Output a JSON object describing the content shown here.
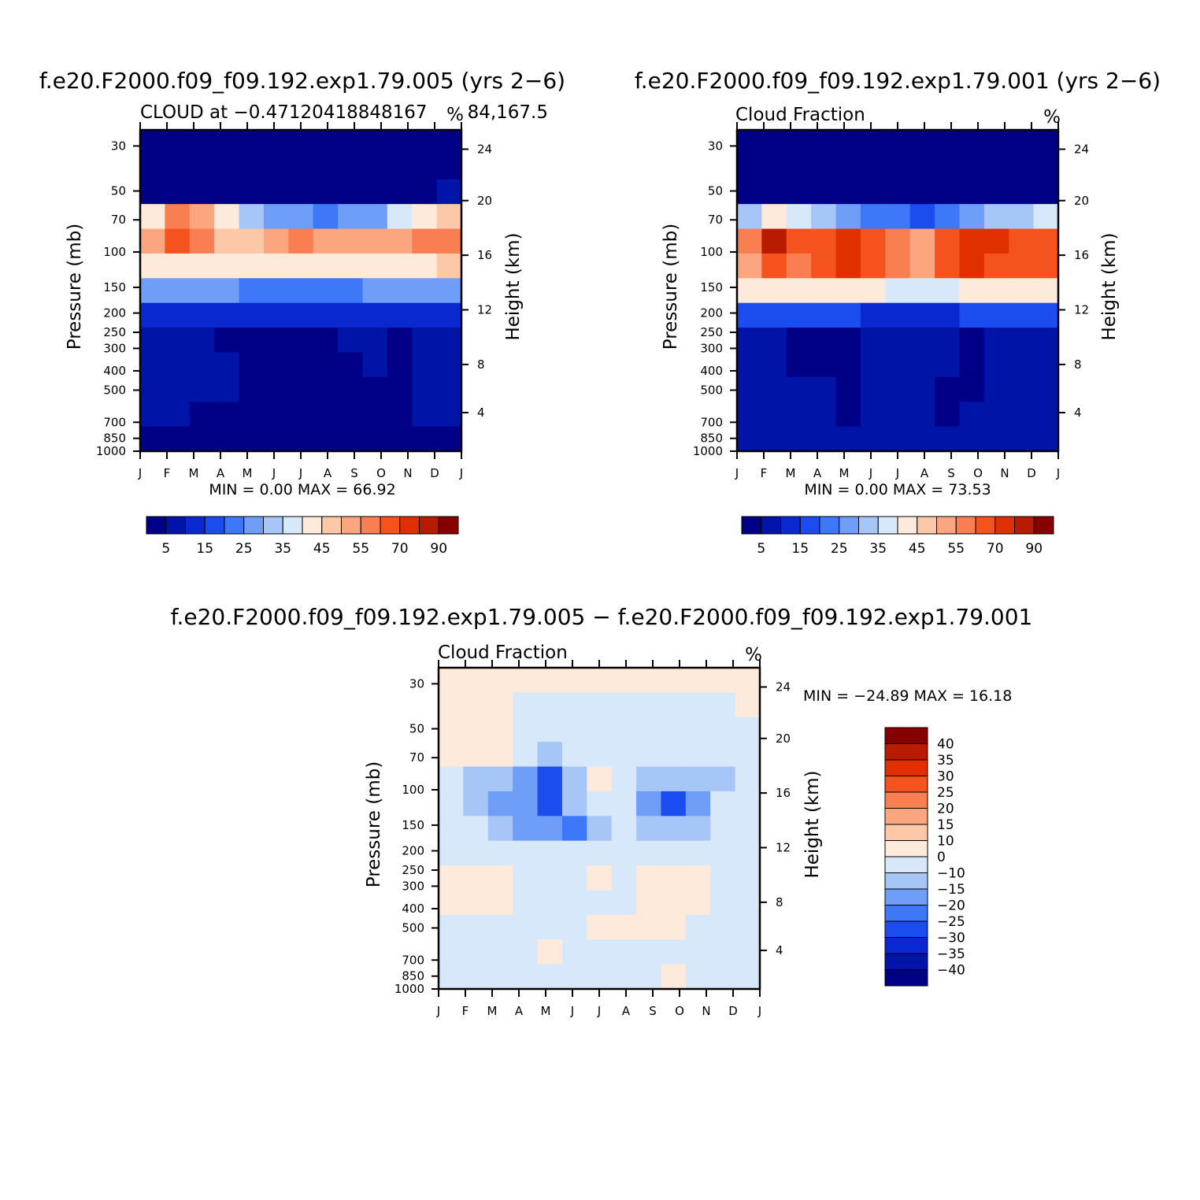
{
  "chart_data": [
    {
      "type": "heatmap",
      "title": "f.e20.F2000.f09_f09.192.exp1.79.005 (yrs 2−6)",
      "subtitle_left": "CLOUD at −0.47120418848167",
      "subtitle_right": "84,167.5",
      "subtitle_units": "%",
      "ylabel": "Pressure (mb)",
      "y2label": "Height (km)",
      "months": [
        "J",
        "F",
        "M",
        "A",
        "M",
        "J",
        "J",
        "A",
        "S",
        "O",
        "N",
        "D",
        "J"
      ],
      "pressure_ticks": [
        "30",
        "50",
        "70",
        "100",
        "150",
        "200",
        "250",
        "300",
        "400",
        "500",
        "700",
        "850",
        "1000"
      ],
      "height_ticks": [
        "24",
        "20",
        "16",
        "12",
        "8",
        "4"
      ],
      "minmax": "MIN =     0.00  MAX =    66.92",
      "colorbar_labels": [
        "5",
        "15",
        "25",
        "35",
        "45",
        "55",
        "70",
        "90"
      ],
      "colorbar_colors": [
        "#000087",
        "#0014a8",
        "#0a28d0",
        "#1a4cf0",
        "#3c78f8",
        "#6e9ef8",
        "#a6c6f8",
        "#d6e8fa",
        "#feeada",
        "#fdc8a8",
        "#fba67e",
        "#f97e52",
        "#f4531e",
        "#e03000",
        "#b81c00",
        "#860000"
      ],
      "grid": [
        [
          0,
          0,
          0,
          0,
          0,
          0,
          0,
          0,
          0,
          0,
          0,
          0,
          0
        ],
        [
          0,
          0,
          0,
          0,
          0,
          0,
          0,
          0,
          0,
          0,
          0,
          0,
          0
        ],
        [
          3,
          4,
          4,
          2,
          1,
          1,
          1,
          0,
          1,
          1,
          2,
          3,
          5
        ],
        [
          44,
          57,
          50,
          40,
          32,
          26,
          26,
          20,
          25,
          28,
          35,
          44,
          48
        ],
        [
          50,
          62,
          58,
          48,
          46,
          50,
          55,
          50,
          50,
          50,
          52,
          55,
          55
        ],
        [
          40,
          42,
          43,
          42,
          41,
          41,
          42,
          41,
          40,
          41,
          42,
          44,
          45
        ],
        [
          25,
          26,
          26,
          25,
          24,
          23,
          22,
          22,
          23,
          25,
          26,
          26,
          26
        ],
        [
          12,
          12,
          12,
          11,
          10,
          10,
          10,
          10,
          11,
          12,
          12,
          12,
          12
        ],
        [
          7,
          6,
          5,
          4,
          2,
          3,
          4,
          4,
          5,
          6,
          4,
          5,
          7
        ],
        [
          8,
          7,
          9,
          5,
          3,
          4,
          4,
          4,
          4,
          5,
          3,
          5,
          8
        ],
        [
          9,
          6,
          5,
          5,
          4,
          4,
          4,
          4,
          4,
          4,
          2,
          5,
          8
        ],
        [
          6,
          5,
          4,
          4,
          3,
          4,
          4,
          4,
          4,
          4,
          3,
          5,
          7
        ],
        [
          4,
          4,
          4,
          4,
          4,
          4,
          4,
          4,
          4,
          4,
          4,
          4,
          4
        ]
      ]
    },
    {
      "type": "heatmap",
      "title": "f.e20.F2000.f09_f09.192.exp1.79.001 (yrs 2−6)",
      "subtitle_left": "Cloud Fraction",
      "subtitle_units": "%",
      "ylabel": "Pressure (mb)",
      "y2label": "Height (km)",
      "months": [
        "J",
        "F",
        "M",
        "A",
        "M",
        "J",
        "J",
        "A",
        "S",
        "O",
        "N",
        "D",
        "J"
      ],
      "pressure_ticks": [
        "30",
        "50",
        "70",
        "100",
        "150",
        "200",
        "250",
        "300",
        "400",
        "500",
        "700",
        "850",
        "1000"
      ],
      "height_ticks": [
        "24",
        "20",
        "16",
        "12",
        "8",
        "4"
      ],
      "minmax": "MIN =     0.00  MAX =    73.53",
      "colorbar_labels": [
        "5",
        "15",
        "25",
        "35",
        "45",
        "55",
        "70",
        "90"
      ],
      "colorbar_colors": [
        "#000087",
        "#0014a8",
        "#0a28d0",
        "#1a4cf0",
        "#3c78f8",
        "#6e9ef8",
        "#a6c6f8",
        "#d6e8fa",
        "#feeada",
        "#fdc8a8",
        "#fba67e",
        "#f97e52",
        "#f4531e",
        "#e03000",
        "#b81c00",
        "#860000"
      ],
      "grid": [
        [
          0,
          0,
          0,
          0,
          0,
          0,
          0,
          0,
          0,
          0,
          0,
          0,
          0
        ],
        [
          0,
          0,
          0,
          0,
          0,
          0,
          0,
          0,
          0,
          0,
          0,
          0,
          0
        ],
        [
          1,
          2,
          2,
          1,
          1,
          1,
          1,
          0,
          1,
          1,
          1,
          2,
          3
        ],
        [
          34,
          40,
          38,
          32,
          28,
          24,
          22,
          18,
          22,
          26,
          30,
          34,
          38
        ],
        [
          55,
          70,
          62,
          62,
          65,
          62,
          58,
          52,
          60,
          65,
          65,
          62,
          62
        ],
        [
          52,
          62,
          58,
          62,
          68,
          64,
          55,
          50,
          60,
          65,
          64,
          62,
          62
        ],
        [
          40,
          42,
          42,
          42,
          42,
          40,
          38,
          36,
          38,
          40,
          42,
          42,
          42
        ],
        [
          18,
          18,
          18,
          17,
          16,
          14,
          13,
          13,
          14,
          16,
          18,
          18,
          18
        ],
        [
          7,
          5,
          4,
          3,
          3,
          5,
          6,
          6,
          6,
          4,
          6,
          8,
          9
        ],
        [
          8,
          5,
          4,
          3,
          3,
          5,
          6,
          6,
          5,
          3,
          5,
          8,
          9
        ],
        [
          7,
          6,
          6,
          5,
          4,
          5,
          6,
          5,
          4,
          3,
          5,
          7,
          8
        ],
        [
          7,
          6,
          6,
          5,
          4,
          5,
          6,
          5,
          4,
          5,
          5,
          7,
          8
        ],
        [
          6,
          6,
          6,
          6,
          6,
          6,
          6,
          6,
          6,
          6,
          6,
          6,
          6
        ]
      ]
    },
    {
      "type": "heatmap",
      "title": "f.e20.F2000.f09_f09.192.exp1.79.005 − f.e20.F2000.f09_f09.192.exp1.79.001",
      "subtitle_left": "Cloud Fraction",
      "subtitle_units": "%",
      "ylabel": "Pressure (mb)",
      "y2label": "Height (km)",
      "months": [
        "J",
        "F",
        "M",
        "A",
        "M",
        "J",
        "J",
        "A",
        "S",
        "O",
        "N",
        "D",
        "J"
      ],
      "pressure_ticks": [
        "30",
        "50",
        "70",
        "100",
        "150",
        "200",
        "250",
        "300",
        "400",
        "500",
        "700",
        "850",
        "1000"
      ],
      "height_ticks": [
        "24",
        "20",
        "16",
        "12",
        "8",
        "4"
      ],
      "minmax": "MIN = −24.89  MAX =    16.18",
      "colorbar_labels": [
        "40",
        "35",
        "30",
        "25",
        "20",
        "15",
        "10",
        "0",
        "−10",
        "−15",
        "−20",
        "−25",
        "−30",
        "−35",
        "−40"
      ],
      "colorbar_colors": [
        "#860000",
        "#b81c00",
        "#e03000",
        "#f4531e",
        "#f97e52",
        "#fba67e",
        "#fdc8a8",
        "#feeada",
        "#d6e8fa",
        "#a6c6f8",
        "#6e9ef8",
        "#3c78f8",
        "#1a4cf0",
        "#0a28d0",
        "#0014a8",
        "#000087"
      ],
      "grid": [
        [
          1,
          1,
          1,
          1,
          1,
          1,
          1,
          1,
          1,
          1,
          1,
          1,
          1
        ],
        [
          1,
          1,
          1,
          -3,
          -3,
          -3,
          -3,
          -3,
          -3,
          -3,
          -3,
          -3,
          1
        ],
        [
          1,
          1,
          1,
          -3,
          -3,
          -3,
          -3,
          -3,
          -3,
          -3,
          -3,
          -3,
          -3
        ],
        [
          1,
          6,
          6,
          -8,
          -14,
          -8,
          -3,
          -3,
          -3,
          -3,
          -3,
          -3,
          -3
        ],
        [
          -3,
          -14,
          -14,
          -18,
          -26,
          -12,
          2,
          -3,
          -14,
          -14,
          -14,
          -14,
          -3
        ],
        [
          -3,
          -14,
          -18,
          -18,
          -26,
          -14,
          -3,
          -3,
          -16,
          -26,
          -16,
          -10,
          -3
        ],
        [
          -3,
          -8,
          -14,
          -16,
          -18,
          -22,
          -12,
          -8,
          -14,
          -14,
          -12,
          -8,
          -3
        ],
        [
          -3,
          -3,
          -8,
          -10,
          -8,
          -8,
          -3,
          -3,
          -3,
          -3,
          -3,
          -3,
          -3
        ],
        [
          1,
          1,
          1,
          -3,
          -3,
          -3,
          2,
          -3,
          1,
          1,
          1,
          -3,
          -3
        ],
        [
          1,
          1,
          1,
          -3,
          -3,
          -3,
          -3,
          -3,
          1,
          1,
          1,
          -3,
          -3
        ],
        [
          -3,
          -3,
          -3,
          -3,
          -3,
          -3,
          1,
          1,
          1,
          1,
          -3,
          -3,
          -3
        ],
        [
          -3,
          -3,
          -3,
          -3,
          1,
          -3,
          -3,
          -3,
          -3,
          -3,
          -3,
          -3,
          -3
        ],
        [
          -3,
          -3,
          -3,
          -3,
          -3,
          -3,
          -3,
          -3,
          -3,
          1,
          -3,
          -3,
          -3
        ]
      ]
    }
  ]
}
